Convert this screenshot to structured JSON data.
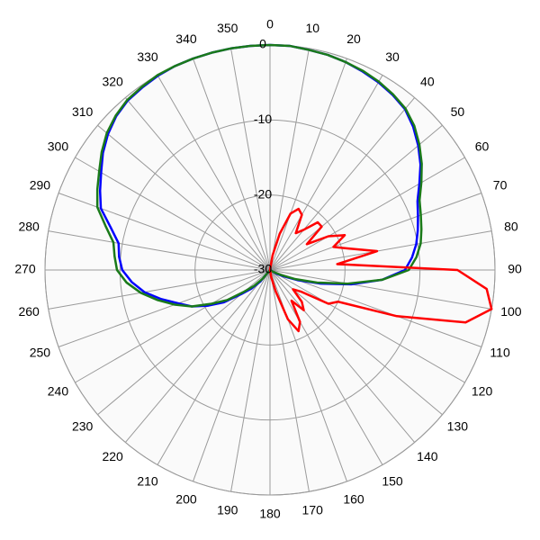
{
  "chart_data": {
    "type": "polar",
    "theta": [
      0,
      5,
      10,
      15,
      20,
      25,
      30,
      35,
      40,
      45,
      50,
      55,
      60,
      65,
      70,
      75,
      80,
      85,
      90,
      95,
      100,
      105,
      110,
      115,
      120,
      125,
      130,
      135,
      140,
      145,
      150,
      155,
      160,
      165,
      170,
      175,
      180,
      185,
      190,
      195,
      200,
      205,
      210,
      215,
      220,
      225,
      230,
      235,
      240,
      245,
      250,
      255,
      260,
      265,
      270,
      275,
      280,
      285,
      290,
      295,
      300,
      305,
      310,
      315,
      320,
      325,
      330,
      335,
      340,
      345,
      350,
      355
    ],
    "series": [
      {
        "color": "#0000ff",
        "values": [
          0,
          0,
          -0.2,
          -0.3,
          -0.5,
          -0.8,
          -1.1,
          -1.5,
          -2,
          -3,
          -4.2,
          -5.5,
          -7,
          -8.3,
          -9,
          -9.6,
          -10.2,
          -11,
          -12,
          -15,
          -19,
          -23,
          -26,
          -28,
          -29,
          -30,
          -30,
          -30,
          -30,
          -30,
          -30,
          -30,
          -30,
          -30,
          -30,
          -30,
          -30,
          -30,
          -30,
          -30,
          -30,
          -30,
          -30,
          -30,
          -28,
          -26.5,
          -25,
          -22.5,
          -20.5,
          -18.5,
          -17,
          -15,
          -13,
          -11.5,
          -10.3,
          -9.8,
          -9.5,
          -8,
          -6,
          -5,
          -4,
          -2.8,
          -1.8,
          -1,
          -0.5,
          -0.3,
          -0.1,
          0,
          0,
          0,
          0,
          0
        ]
      },
      {
        "color": "#1a7a1a",
        "values": [
          0,
          0,
          -0.2,
          -0.3,
          -0.5,
          -0.7,
          -1,
          -1.4,
          -1.9,
          -2.8,
          -4,
          -5.3,
          -6.7,
          -8,
          -8.6,
          -9.1,
          -9.6,
          -10.4,
          -11.5,
          -15,
          -19.5,
          -23.5,
          -26.5,
          -28.5,
          -29.5,
          -30,
          -30,
          -30,
          -30,
          -30,
          -30,
          -30,
          -30,
          -30,
          -30,
          -30,
          -30,
          -30,
          -30,
          -30,
          -30,
          -30,
          -30,
          -30,
          -28.5,
          -27,
          -25.5,
          -23,
          -21,
          -18.5,
          -16.5,
          -14.5,
          -12.5,
          -10.8,
          -9.6,
          -9.2,
          -8.8,
          -7.3,
          -5.5,
          -4.6,
          -3.7,
          -2.6,
          -1.6,
          -0.9,
          -0.4,
          -0.2,
          0,
          0,
          0,
          0,
          0,
          0
        ]
      },
      {
        "color": "#ff0000",
        "values": [
          -30,
          -30,
          -28,
          -25,
          -22,
          -21,
          -21.5,
          -24,
          -23,
          -21,
          -21,
          -24,
          -21,
          -19,
          -21,
          -19,
          -15.5,
          -21,
          -5,
          -1,
          0,
          -3,
          -12,
          -20,
          -21,
          -25,
          -26,
          -24,
          -23,
          -25,
          -22,
          -21,
          -23,
          -27,
          -29,
          -30,
          -30,
          -30,
          -30,
          -30,
          -30,
          -30,
          -30,
          -30,
          -30,
          -30,
          -30,
          -30,
          -30,
          -30,
          -30,
          -30,
          -30,
          -30,
          -30,
          -30,
          -30,
          -30,
          -30,
          -30,
          -30,
          -30,
          -30,
          -30,
          -30,
          -30,
          -30,
          -30,
          -30,
          -30,
          -30,
          -30
        ]
      }
    ],
    "ylim": [
      -30,
      0
    ],
    "yticks": [
      -30,
      -20,
      -10,
      0
    ],
    "xticks": [
      0,
      10,
      20,
      30,
      40,
      50,
      60,
      70,
      80,
      90,
      100,
      110,
      120,
      130,
      140,
      150,
      160,
      170,
      180,
      190,
      200,
      210,
      220,
      230,
      240,
      250,
      260,
      270,
      280,
      290,
      300,
      310,
      320,
      330,
      340,
      350
    ],
    "grid": true
  }
}
